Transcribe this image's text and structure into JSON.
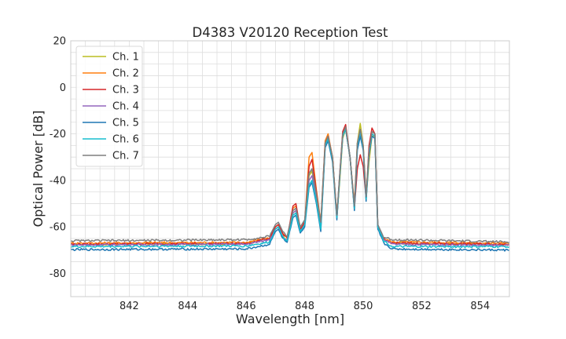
{
  "chart_data": {
    "type": "line",
    "title": "D4383 V20120 Reception Test",
    "xlabel": "Wavelength [nm]",
    "ylabel": "Optical Power [dB]",
    "xlim": [
      840,
      855
    ],
    "ylim": [
      -90,
      20
    ],
    "xticks": [
      842,
      844,
      846,
      848,
      850,
      852,
      854
    ],
    "yticks": [
      -80,
      -60,
      -40,
      -20,
      0,
      20
    ],
    "x_minor_step": 0.5,
    "y_minor_step": 5,
    "grid": true,
    "legend_position": "top-left",
    "series": [
      {
        "name": "Ch. 1",
        "color": "#bcbd22",
        "points": [
          [
            840,
            -67.5
          ],
          [
            843,
            -67.3
          ],
          [
            846,
            -67.2
          ],
          [
            846.6,
            -65.5
          ],
          [
            846.8,
            -65.2
          ],
          [
            847.0,
            -61
          ],
          [
            847.1,
            -60
          ],
          [
            847.25,
            -64
          ],
          [
            847.4,
            -66
          ],
          [
            847.6,
            -54
          ],
          [
            847.7,
            -53
          ],
          [
            847.85,
            -62
          ],
          [
            848.0,
            -59
          ],
          [
            848.15,
            -38
          ],
          [
            848.25,
            -36
          ],
          [
            848.4,
            -47
          ],
          [
            848.55,
            -60
          ],
          [
            848.7,
            -25
          ],
          [
            848.8,
            -21
          ],
          [
            848.95,
            -30
          ],
          [
            849.1,
            -56
          ],
          [
            849.2,
            -40
          ],
          [
            849.3,
            -22
          ],
          [
            849.4,
            -18
          ],
          [
            849.55,
            -30
          ],
          [
            849.7,
            -52
          ],
          [
            849.8,
            -24
          ],
          [
            849.9,
            -15.5
          ],
          [
            850.0,
            -25
          ],
          [
            850.1,
            -48
          ],
          [
            850.2,
            -32
          ],
          [
            850.3,
            -21
          ],
          [
            850.4,
            -21
          ],
          [
            850.5,
            -60
          ],
          [
            850.7,
            -65.5
          ],
          [
            851,
            -67
          ],
          [
            855,
            -67.5
          ]
        ]
      },
      {
        "name": "Ch. 2",
        "color": "#ff7f0e",
        "points": [
          [
            840,
            -67
          ],
          [
            843,
            -66.8
          ],
          [
            846,
            -66.7
          ],
          [
            846.6,
            -65
          ],
          [
            846.8,
            -64.8
          ],
          [
            847.0,
            -60
          ],
          [
            847.1,
            -59
          ],
          [
            847.25,
            -63
          ],
          [
            847.4,
            -65
          ],
          [
            847.6,
            -52
          ],
          [
            847.7,
            -51
          ],
          [
            847.85,
            -61
          ],
          [
            848.0,
            -58
          ],
          [
            848.15,
            -30
          ],
          [
            848.25,
            -28
          ],
          [
            848.4,
            -44
          ],
          [
            848.55,
            -58
          ],
          [
            848.7,
            -23
          ],
          [
            848.8,
            -20
          ],
          [
            848.95,
            -30
          ],
          [
            849.1,
            -55
          ],
          [
            849.2,
            -38
          ],
          [
            849.3,
            -20
          ],
          [
            849.4,
            -17
          ],
          [
            849.55,
            -30
          ],
          [
            849.7,
            -50
          ],
          [
            849.8,
            -24
          ],
          [
            849.9,
            -18
          ],
          [
            850.0,
            -25
          ],
          [
            850.1,
            -46
          ],
          [
            850.2,
            -30
          ],
          [
            850.3,
            -19
          ],
          [
            850.4,
            -20
          ],
          [
            850.5,
            -60
          ],
          [
            850.7,
            -65
          ],
          [
            851,
            -66.5
          ],
          [
            855,
            -67
          ]
        ]
      },
      {
        "name": "Ch. 3",
        "color": "#d62728",
        "points": [
          [
            840,
            -67.5
          ],
          [
            843,
            -67.3
          ],
          [
            846,
            -67.2
          ],
          [
            846.6,
            -65.5
          ],
          [
            846.8,
            -65
          ],
          [
            847.0,
            -60
          ],
          [
            847.1,
            -59
          ],
          [
            847.25,
            -63
          ],
          [
            847.4,
            -65
          ],
          [
            847.6,
            -51
          ],
          [
            847.7,
            -50
          ],
          [
            847.85,
            -61
          ],
          [
            848.0,
            -58
          ],
          [
            848.15,
            -34
          ],
          [
            848.25,
            -31
          ],
          [
            848.4,
            -45
          ],
          [
            848.55,
            -59
          ],
          [
            848.7,
            -24
          ],
          [
            848.8,
            -21
          ],
          [
            848.95,
            -30
          ],
          [
            849.1,
            -56
          ],
          [
            849.2,
            -37
          ],
          [
            849.3,
            -19
          ],
          [
            849.4,
            -16
          ],
          [
            849.55,
            -30
          ],
          [
            849.7,
            -52
          ],
          [
            849.8,
            -35
          ],
          [
            849.9,
            -29
          ],
          [
            850.0,
            -34
          ],
          [
            850.1,
            -48
          ],
          [
            850.2,
            -25
          ],
          [
            850.3,
            -17.5
          ],
          [
            850.4,
            -20
          ],
          [
            850.5,
            -60
          ],
          [
            850.7,
            -65.5
          ],
          [
            851,
            -67
          ],
          [
            855,
            -67.5
          ]
        ]
      },
      {
        "name": "Ch. 4",
        "color": "#9467bd",
        "points": [
          [
            840,
            -67.8
          ],
          [
            843,
            -67.6
          ],
          [
            846,
            -67.5
          ],
          [
            846.6,
            -66
          ],
          [
            846.8,
            -65.5
          ],
          [
            847.0,
            -61
          ],
          [
            847.1,
            -60
          ],
          [
            847.25,
            -64
          ],
          [
            847.4,
            -66
          ],
          [
            847.6,
            -54
          ],
          [
            847.7,
            -53
          ],
          [
            847.85,
            -62
          ],
          [
            848.0,
            -59
          ],
          [
            848.15,
            -40
          ],
          [
            848.25,
            -38
          ],
          [
            848.4,
            -48
          ],
          [
            848.55,
            -60
          ],
          [
            848.7,
            -25
          ],
          [
            848.8,
            -22
          ],
          [
            848.95,
            -31
          ],
          [
            849.1,
            -56
          ],
          [
            849.2,
            -38
          ],
          [
            849.3,
            -21
          ],
          [
            849.4,
            -18
          ],
          [
            849.55,
            -30
          ],
          [
            849.7,
            -52
          ],
          [
            849.8,
            -26
          ],
          [
            849.9,
            -20
          ],
          [
            850.0,
            -26
          ],
          [
            850.1,
            -48
          ],
          [
            850.2,
            -28
          ],
          [
            850.3,
            -20
          ],
          [
            850.4,
            -21
          ],
          [
            850.5,
            -60
          ],
          [
            850.7,
            -65.5
          ],
          [
            851,
            -67.5
          ],
          [
            855,
            -68
          ]
        ]
      },
      {
        "name": "Ch. 5",
        "color": "#1f77b4",
        "points": [
          [
            840,
            -69.8
          ],
          [
            843,
            -69.6
          ],
          [
            846,
            -69.5
          ],
          [
            846.6,
            -68
          ],
          [
            846.8,
            -67.5
          ],
          [
            847.0,
            -62
          ],
          [
            847.1,
            -61
          ],
          [
            847.25,
            -65
          ],
          [
            847.4,
            -67
          ],
          [
            847.6,
            -56
          ],
          [
            847.7,
            -55
          ],
          [
            847.85,
            -63
          ],
          [
            848.0,
            -60
          ],
          [
            848.15,
            -43
          ],
          [
            848.25,
            -41
          ],
          [
            848.4,
            -50
          ],
          [
            848.55,
            -62
          ],
          [
            848.7,
            -26
          ],
          [
            848.8,
            -23
          ],
          [
            848.95,
            -32
          ],
          [
            849.1,
            -57
          ],
          [
            849.2,
            -38
          ],
          [
            849.3,
            -21
          ],
          [
            849.4,
            -18
          ],
          [
            849.55,
            -30
          ],
          [
            849.7,
            -53
          ],
          [
            849.8,
            -27
          ],
          [
            849.9,
            -21
          ],
          [
            850.0,
            -27
          ],
          [
            850.1,
            -49
          ],
          [
            850.2,
            -29
          ],
          [
            850.3,
            -21
          ],
          [
            850.4,
            -22
          ],
          [
            850.5,
            -61
          ],
          [
            850.7,
            -67
          ],
          [
            851,
            -69.5
          ],
          [
            855,
            -70
          ]
        ]
      },
      {
        "name": "Ch. 6",
        "color": "#17becf",
        "points": [
          [
            840,
            -68.5
          ],
          [
            843,
            -68.3
          ],
          [
            846,
            -68.2
          ],
          [
            846.6,
            -67
          ],
          [
            846.8,
            -66.5
          ],
          [
            847.0,
            -61
          ],
          [
            847.1,
            -60
          ],
          [
            847.25,
            -64
          ],
          [
            847.4,
            -66
          ],
          [
            847.6,
            -55
          ],
          [
            847.7,
            -54
          ],
          [
            847.85,
            -62
          ],
          [
            848.0,
            -59
          ],
          [
            848.15,
            -42
          ],
          [
            848.25,
            -40
          ],
          [
            848.4,
            -49
          ],
          [
            848.55,
            -61
          ],
          [
            848.7,
            -25
          ],
          [
            848.8,
            -22
          ],
          [
            848.95,
            -31
          ],
          [
            849.1,
            -56
          ],
          [
            849.2,
            -38
          ],
          [
            849.3,
            -21
          ],
          [
            849.4,
            -18
          ],
          [
            849.55,
            -30
          ],
          [
            849.7,
            -52
          ],
          [
            849.8,
            -25
          ],
          [
            849.9,
            -19
          ],
          [
            850.0,
            -26
          ],
          [
            850.1,
            -48
          ],
          [
            850.2,
            -28
          ],
          [
            850.3,
            -20
          ],
          [
            850.4,
            -21
          ],
          [
            850.5,
            -60
          ],
          [
            850.7,
            -66
          ],
          [
            851,
            -68.5
          ],
          [
            855,
            -68.5
          ]
        ]
      },
      {
        "name": "Ch. 7",
        "color": "#7f7f7f",
        "points": [
          [
            840,
            -66
          ],
          [
            843,
            -65.8
          ],
          [
            846,
            -65.5
          ],
          [
            846.6,
            -64.5
          ],
          [
            846.8,
            -64
          ],
          [
            847.0,
            -59
          ],
          [
            847.1,
            -58
          ],
          [
            847.25,
            -62
          ],
          [
            847.4,
            -64
          ],
          [
            847.6,
            -53
          ],
          [
            847.7,
            -52
          ],
          [
            847.85,
            -60
          ],
          [
            848.0,
            -57
          ],
          [
            848.15,
            -37
          ],
          [
            848.25,
            -35
          ],
          [
            848.4,
            -46
          ],
          [
            848.55,
            -58
          ],
          [
            848.7,
            -24
          ],
          [
            848.8,
            -21
          ],
          [
            848.95,
            -30
          ],
          [
            849.1,
            -55
          ],
          [
            849.2,
            -37
          ],
          [
            849.3,
            -20
          ],
          [
            849.4,
            -17
          ],
          [
            849.55,
            -30
          ],
          [
            849.7,
            -51
          ],
          [
            849.8,
            -24
          ],
          [
            849.9,
            -18
          ],
          [
            850.0,
            -25
          ],
          [
            850.1,
            -47
          ],
          [
            850.2,
            -27
          ],
          [
            850.3,
            -19
          ],
          [
            850.4,
            -20
          ],
          [
            850.5,
            -59
          ],
          [
            850.7,
            -64.5
          ],
          [
            851,
            -65.5
          ],
          [
            855,
            -66.5
          ]
        ]
      }
    ]
  }
}
